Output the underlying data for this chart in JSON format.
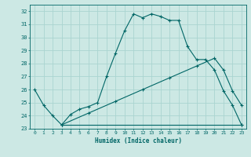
{
  "title": "",
  "xlabel": "Humidex (Indice chaleur)",
  "bg_color": "#cce8e4",
  "grid_color": "#aad4d0",
  "line_color": "#006666",
  "xlim": [
    -0.5,
    23.5
  ],
  "ylim": [
    23,
    32.5
  ],
  "yticks": [
    23,
    24,
    25,
    26,
    27,
    28,
    29,
    30,
    31,
    32
  ],
  "xticks": [
    0,
    1,
    2,
    3,
    4,
    5,
    6,
    7,
    8,
    9,
    10,
    11,
    12,
    13,
    14,
    15,
    16,
    17,
    18,
    19,
    20,
    21,
    22,
    23
  ],
  "curve1_x": [
    0,
    1,
    2,
    3,
    4,
    5,
    6,
    7,
    8,
    9,
    10,
    11,
    12,
    13,
    14,
    15,
    16,
    17,
    18,
    19,
    20,
    21,
    22,
    23
  ],
  "curve1_y": [
    26.0,
    24.8,
    24.0,
    23.3,
    24.1,
    24.5,
    24.7,
    25.0,
    27.0,
    28.8,
    30.5,
    31.8,
    31.5,
    31.8,
    31.6,
    31.3,
    31.3,
    29.3,
    28.3,
    28.3,
    27.5,
    25.9,
    24.8,
    23.3
  ],
  "curve2_x": [
    3,
    23
  ],
  "curve2_y": [
    23.3,
    23.3
  ],
  "curve3_x": [
    3,
    6,
    9,
    12,
    15,
    18,
    20,
    21,
    22,
    23
  ],
  "curve3_y": [
    23.3,
    24.2,
    25.1,
    26.0,
    26.9,
    27.8,
    28.4,
    27.5,
    25.9,
    24.8
  ]
}
